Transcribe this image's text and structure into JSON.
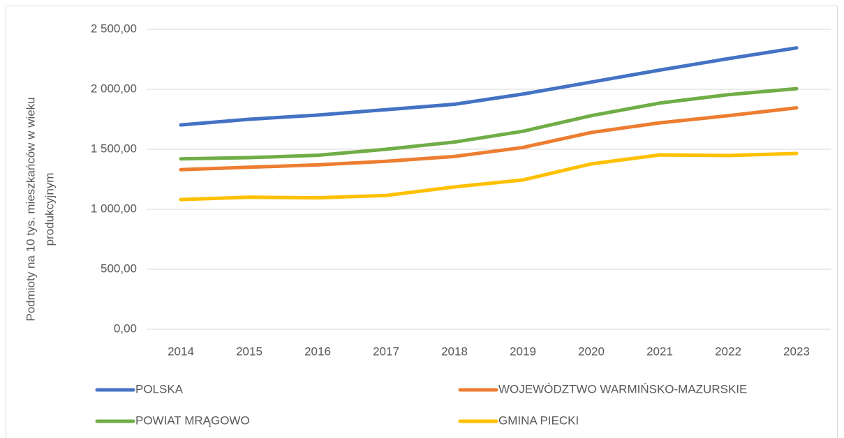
{
  "chart_data": {
    "type": "line",
    "ylabel": [
      "Podmioty na 10 tys. mieszkańców w wieku",
      "produkcyjnym"
    ],
    "categories": [
      "2014",
      "2015",
      "2016",
      "2017",
      "2018",
      "2019",
      "2020",
      "2021",
      "2022",
      "2023"
    ],
    "series": [
      {
        "name": "POLSKA",
        "color": "#4472c4",
        "values": [
          1703,
          1750,
          1785,
          1830,
          1875,
          1960,
          2060,
          2160,
          2255,
          2345
        ]
      },
      {
        "name": "WOJEWÓDZTWO WARMIŃSKO-MAZURSKIE",
        "color": "#ed7d31",
        "values": [
          1330,
          1350,
          1370,
          1400,
          1440,
          1515,
          1640,
          1720,
          1780,
          1845
        ]
      },
      {
        "name": "POWIAT MRĄGOWO",
        "color": "#70ad47",
        "values": [
          1420,
          1430,
          1450,
          1500,
          1560,
          1650,
          1780,
          1885,
          1955,
          2005
        ]
      },
      {
        "name": "GMINA PIECKI",
        "color": "#ffc000",
        "values": [
          1081,
          1100,
          1095,
          1115,
          1186,
          1244,
          1378,
          1453,
          1448,
          1465
        ]
      }
    ],
    "ylim": [
      0,
      2500
    ],
    "yticks": [
      {
        "value": 0,
        "label": "0,00"
      },
      {
        "value": 500,
        "label": "500,00"
      },
      {
        "value": 1000,
        "label": "1 000,00"
      },
      {
        "value": 1500,
        "label": "1 500,00"
      },
      {
        "value": 2000,
        "label": "2 000,00"
      },
      {
        "value": 2500,
        "label": "2 500,00"
      }
    ],
    "grid": true,
    "legend": "bottom"
  }
}
